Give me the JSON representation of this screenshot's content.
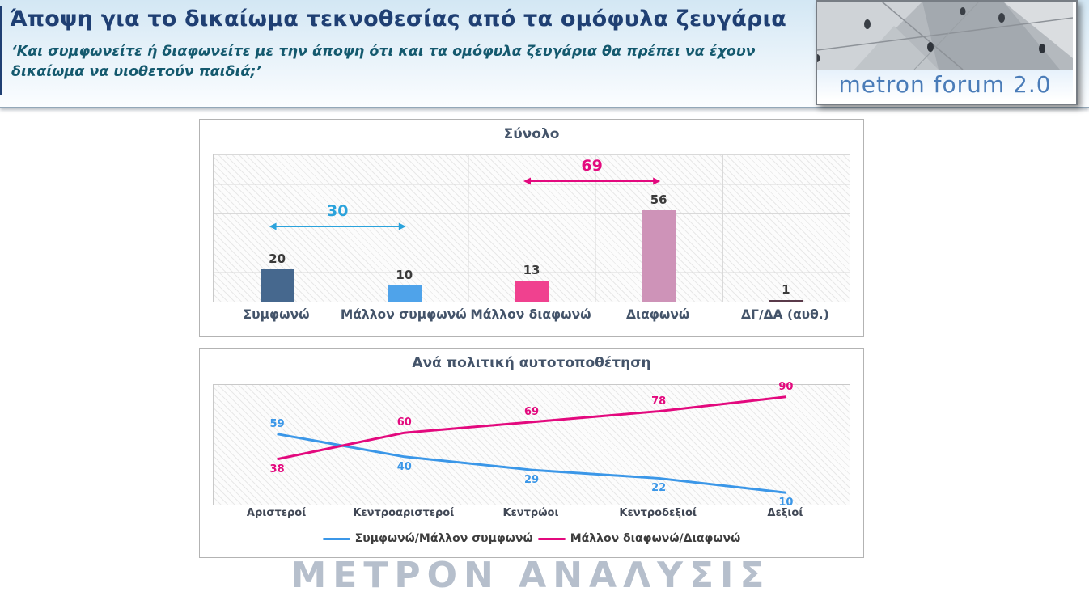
{
  "header": {
    "title": "Άποψη για το δικαίωμα τεκνοθεσίας από τα ομόφυλα ζευγάρια",
    "subtitle": "‘Και συμφωνείτε ή διαφωνείτε με την άποψη ότι και τα ομόφυλα ζευγάρια θα πρέπει να έχουν δικαίωμα να υιοθετούν παιδιά;’",
    "logo_text": "metron forum 2.0"
  },
  "chart_data": [
    {
      "type": "bar",
      "title": "Σύνολο",
      "categories": [
        "Συμφωνώ",
        "Μάλλον συμφωνώ",
        "Μάλλον διαφωνώ",
        "Διαφωνώ",
        "ΔΓ/ΔΑ (αυθ.)"
      ],
      "values": [
        20,
        10,
        13,
        56,
        1
      ],
      "bar_colors": [
        "#46688e",
        "#4fa3ea",
        "#f0418f",
        "#ce93b8",
        "#5a3a4a"
      ],
      "ylim": [
        0,
        90
      ],
      "grid": true,
      "annotations": [
        {
          "label": "30",
          "color": "#2ba3dc",
          "from_cat": 0,
          "to_cat": 1
        },
        {
          "label": "69",
          "color": "#e3097e",
          "from_cat": 2,
          "to_cat": 3
        }
      ]
    },
    {
      "type": "line",
      "title": "Ανά πολιτική αυτοτοποθέτηση",
      "categories": [
        "Αριστεροί",
        "Κεντροαριστεροί",
        "Κεντρώοι",
        "Κεντροδεξιοί",
        "Δεξιοί"
      ],
      "series": [
        {
          "name": "Συμφωνώ/Μάλλον συμφωνώ",
          "color": "#3b97e8",
          "values": [
            59,
            40,
            29,
            22,
            10
          ]
        },
        {
          "name": "Μάλλον διαφωνώ/Διαφωνώ",
          "color": "#e3097e",
          "values": [
            38,
            60,
            69,
            78,
            90
          ]
        }
      ],
      "ylim": [
        0,
        100
      ],
      "legend_position": "bottom"
    }
  ],
  "footer": {
    "watermark": "ΜΕΤΡΟΝ ΑΝΑΛΥΣΙΣ"
  }
}
